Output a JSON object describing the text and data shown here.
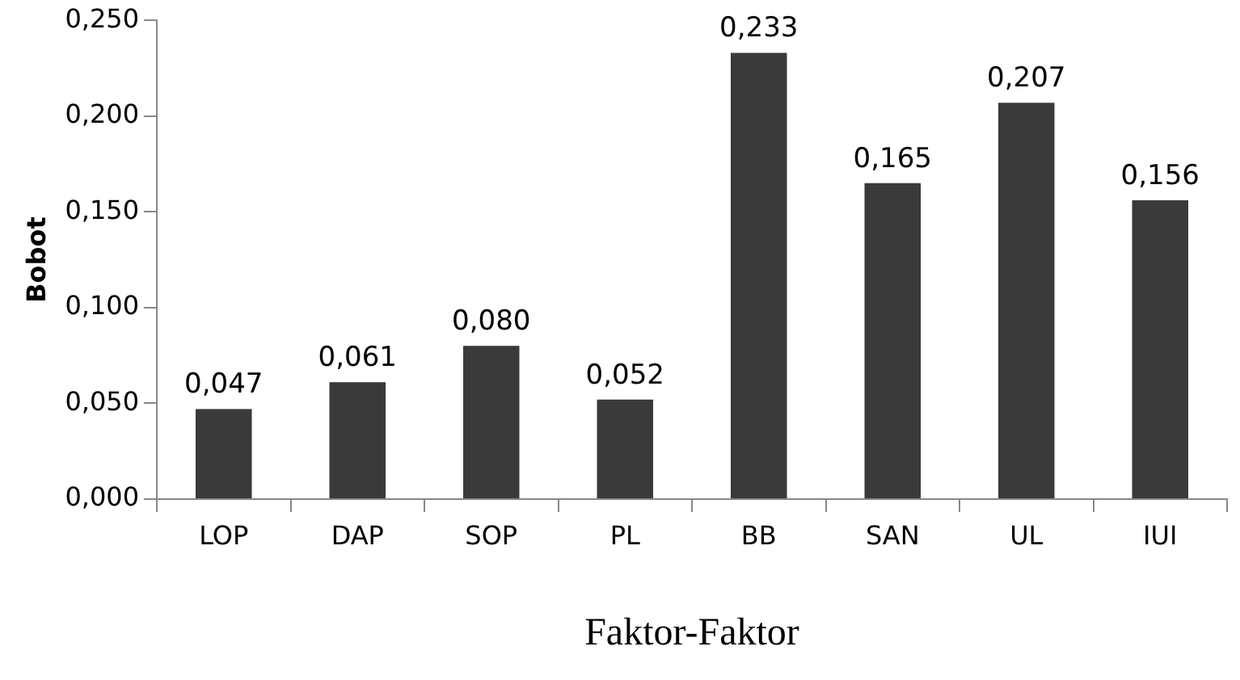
{
  "chart_data": {
    "type": "bar",
    "xlabel": "Faktor-Faktor",
    "ylabel": "Bobot",
    "categories": [
      "LOP",
      "DAP",
      "SOP",
      "PL",
      "BB",
      "SAN",
      "UL",
      "IUI"
    ],
    "values": [
      0.047,
      0.061,
      0.08,
      0.052,
      0.233,
      0.165,
      0.207,
      0.156
    ],
    "value_labels": [
      "0,047",
      "0,061",
      "0,080",
      "0,052",
      "0,233",
      "0,165",
      "0,207",
      "0,156"
    ],
    "color": "#3a3a3a",
    "ylim": [
      0,
      0.25
    ],
    "yticks": [
      {
        "value": 0,
        "label": "0,000"
      },
      {
        "value": 0.05,
        "label": "0,050"
      },
      {
        "value": 0.1,
        "label": "0,100"
      },
      {
        "value": 0.15,
        "label": "0,150"
      },
      {
        "value": 0.2,
        "label": "0,200"
      },
      {
        "value": 0.25,
        "label": "0,250"
      }
    ],
    "grid": false,
    "legend": false
  }
}
